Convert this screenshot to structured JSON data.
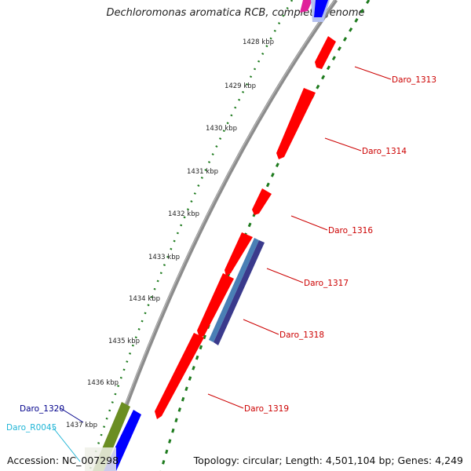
{
  "title": "Dechloromonas aromatica RCB, complete genome",
  "accession": "Accession: NC_007298",
  "topology": "Topology: circular; Length: 4,501,104 bp; Genes: 4,249",
  "colors": {
    "backbone": "#8c8c8c",
    "tick_green": "#1e7b1e",
    "gene_red": "#ff0000",
    "label_red": "#cc0000",
    "label_blue": "#00008b",
    "label_cyan": "#1fb5d6",
    "steel_blue": "#4a7fb5",
    "dark_blue": "#3a3a8c",
    "olive": "#6b8e23",
    "blue": "#0000ff",
    "magenta": "#e0209a"
  },
  "kbp_labels": [
    "1428 kbp",
    "1429 kbp",
    "1430 kbp",
    "1431 kbp",
    "1432 kbp",
    "1433 kbp",
    "1434 kbp",
    "1435 kbp",
    "1436 kbp",
    "1437 kbp"
  ],
  "gene_labels": [
    {
      "text": "Daro_1313",
      "color": "#cc0000"
    },
    {
      "text": "Daro_1314",
      "color": "#cc0000"
    },
    {
      "text": "Daro_1316",
      "color": "#cc0000"
    },
    {
      "text": "Daro_1317",
      "color": "#cc0000"
    },
    {
      "text": "Daro_1318",
      "color": "#cc0000"
    },
    {
      "text": "Daro_1319",
      "color": "#cc0000"
    },
    {
      "text": "Daro_1320",
      "color": "#00008b"
    },
    {
      "text": "Daro_R0045",
      "color": "#1fb5d6"
    }
  ]
}
